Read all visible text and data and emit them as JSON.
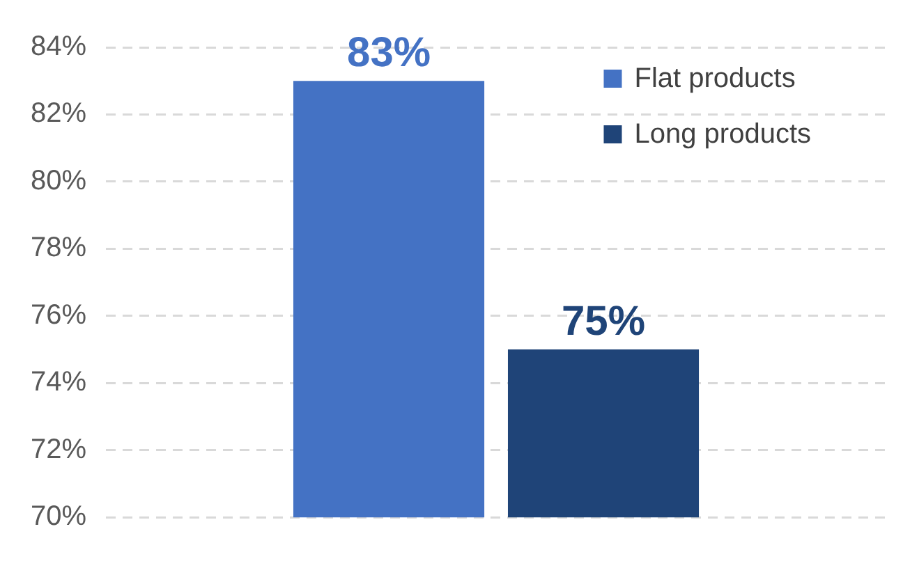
{
  "chart_data": {
    "type": "bar",
    "categories": [
      null
    ],
    "series": [
      {
        "name": "Flat products",
        "color": "#4472c4",
        "values": [
          83
        ],
        "value_labels": [
          "83%"
        ]
      },
      {
        "name": "Long products",
        "color": "#1f4478",
        "values": [
          75
        ],
        "value_labels": [
          "75%"
        ]
      }
    ],
    "ylim": [
      70,
      84
    ],
    "yticks": [
      {
        "value": 70,
        "label": "70%"
      },
      {
        "value": 72,
        "label": "72%"
      },
      {
        "value": 74,
        "label": "74%"
      },
      {
        "value": 76,
        "label": "76%"
      },
      {
        "value": 78,
        "label": "78%"
      },
      {
        "value": 80,
        "label": "80%"
      },
      {
        "value": 82,
        "label": "82%"
      },
      {
        "value": 84,
        "label": "84%"
      }
    ],
    "grid": "y",
    "legend": "top right"
  }
}
